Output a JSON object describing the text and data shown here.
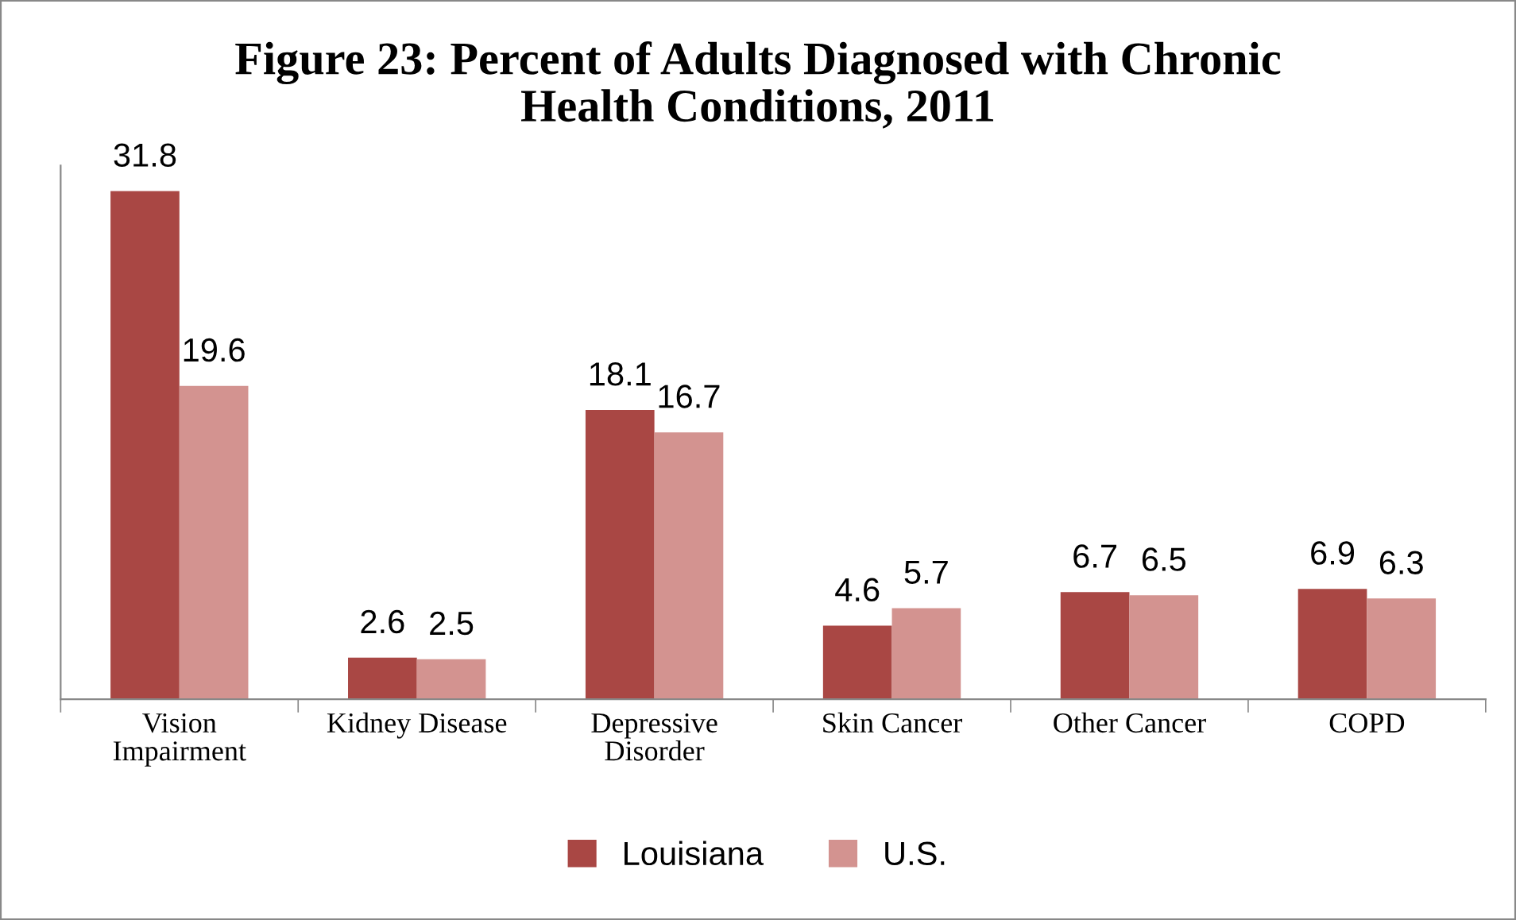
{
  "chart_data": {
    "type": "bar",
    "title": "Figure 23: Percent of Adults Diagnosed with Chronic\nHealth Conditions, 2011",
    "categories": [
      "Vision\nImpairment",
      "Kidney Disease",
      "Depressive\nDisorder",
      "Skin Cancer",
      "Other Cancer",
      "COPD"
    ],
    "series": [
      {
        "name": "Louisiana",
        "color": "#a94744",
        "values": [
          31.8,
          2.6,
          18.1,
          4.6,
          6.7,
          6.9
        ]
      },
      {
        "name": "U.S.",
        "color": "#d39390",
        "values": [
          19.6,
          2.5,
          16.7,
          5.7,
          6.5,
          6.3
        ]
      }
    ],
    "data_labels": true,
    "legend": "bottom",
    "grid": false
  }
}
